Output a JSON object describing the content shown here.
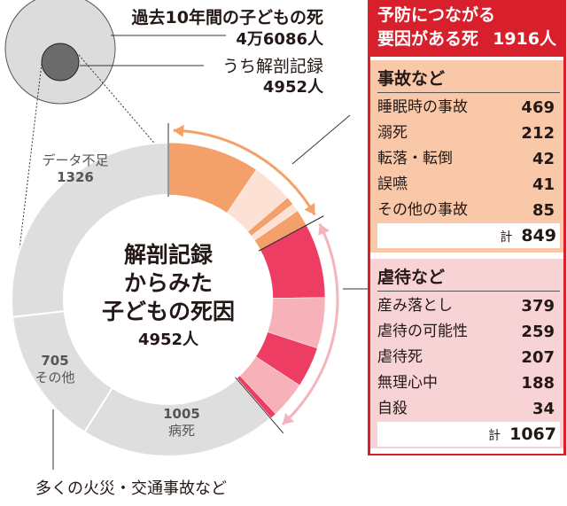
{
  "top": {
    "total_label": "過去10年間の子どもの死",
    "total_value": "4万6086人",
    "autopsy_label": "うち解剖記録",
    "autopsy_value": "4952人"
  },
  "center": {
    "line1": "解剖記録",
    "line2": "からみた",
    "line3": "子どもの死因",
    "count": "4952人"
  },
  "panel": {
    "header_line1": "予防につながる",
    "header_line2": "要因がある死",
    "header_value": "1916人",
    "accident": {
      "title": "事故など",
      "items": [
        {
          "label": "睡眠時の事故",
          "value": "469"
        },
        {
          "label": "溺死",
          "value": "212"
        },
        {
          "label": "転落・転倒",
          "value": "42"
        },
        {
          "label": "誤嚥",
          "value": "41"
        },
        {
          "label": "その他の事故",
          "value": "85"
        }
      ],
      "total_label": "計",
      "total": "849"
    },
    "abuse": {
      "title": "虐待など",
      "items": [
        {
          "label": "産み落とし",
          "value": "379"
        },
        {
          "label": "虐待の可能性",
          "value": "259"
        },
        {
          "label": "虐待死",
          "value": "207"
        },
        {
          "label": "無理心中",
          "value": "188"
        },
        {
          "label": "自殺",
          "value": "34"
        }
      ],
      "total_label": "計",
      "total": "1067"
    }
  },
  "donut_labels": {
    "missing": "データ不足",
    "missing_value": "1326",
    "other_value": "705",
    "other": "その他",
    "disease_value": "1005",
    "disease": "病死",
    "footnote": "多くの火災・交通事故など"
  },
  "chart_data": {
    "type": "pie",
    "title": "解剖記録からみた子どもの死因",
    "total": 4952,
    "segments": [
      {
        "name": "睡眠時の事故",
        "value": 469,
        "group": "accident"
      },
      {
        "name": "溺死",
        "value": 212,
        "group": "accident"
      },
      {
        "name": "転落・転倒",
        "value": 42,
        "group": "accident"
      },
      {
        "name": "誤嚥",
        "value": 41,
        "group": "accident"
      },
      {
        "name": "その他の事故",
        "value": 85,
        "group": "accident"
      },
      {
        "name": "産み落とし",
        "value": 379,
        "group": "abuse"
      },
      {
        "name": "虐待の可能性",
        "value": 259,
        "group": "abuse"
      },
      {
        "name": "虐待死",
        "value": 207,
        "group": "abuse"
      },
      {
        "name": "無理心中",
        "value": 188,
        "group": "abuse"
      },
      {
        "name": "自殺",
        "value": 34,
        "group": "abuse"
      },
      {
        "name": "病死",
        "value": 1005,
        "group": "other"
      },
      {
        "name": "その他",
        "value": 705,
        "group": "other"
      },
      {
        "name": "データ不足",
        "value": 1326,
        "group": "other"
      }
    ],
    "colors": {
      "accident": [
        "#f4a06a",
        "#fde1d4"
      ],
      "abuse": [
        "#ee3d63",
        "#f6b1b9"
      ],
      "other": [
        "#dedede",
        "#dedede"
      ],
      "accident_arrow": "#f4a06a",
      "abuse_arrow": "#f4b3bd"
    }
  }
}
